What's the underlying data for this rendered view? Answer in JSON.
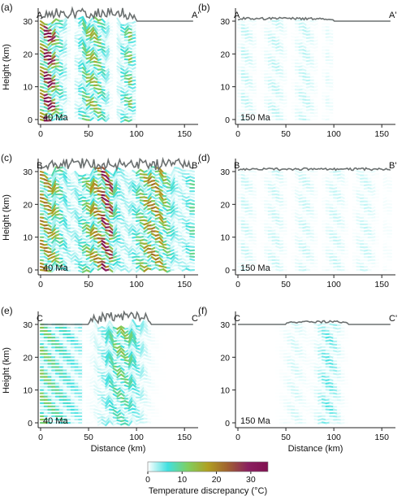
{
  "chart_data": [
    {
      "panel": "(a)",
      "type": "line",
      "profile_start": "A",
      "profile_end": "A'",
      "age": "40 Ma",
      "xlabel": "",
      "ylabel": "Height (km)",
      "xlim": [
        0,
        160
      ],
      "ylim": [
        0,
        32
      ],
      "xticks": [
        "0",
        "50",
        "100",
        "150"
      ],
      "yticks": [
        "0",
        "10",
        "20",
        "30"
      ],
      "series_count": 31,
      "layer_spacing_km": 1,
      "surface_height_km": 30,
      "topography_extent_km": [
        0,
        100
      ],
      "max_discrepancy_c": 30
    },
    {
      "panel": "(b)",
      "type": "line",
      "profile_start": "A",
      "profile_end": "A'",
      "age": "150 Ma",
      "xlabel": "",
      "ylabel": "",
      "xlim": [
        0,
        160
      ],
      "ylim": [
        0,
        32
      ],
      "xticks": [
        "0",
        "50",
        "100",
        "150"
      ],
      "yticks": [
        "0",
        "10",
        "20",
        "30"
      ],
      "series_count": 31,
      "layer_spacing_km": 1,
      "surface_height_km": 30,
      "topography_extent_km": [
        0,
        100
      ],
      "max_discrepancy_c": 8
    },
    {
      "panel": "(c)",
      "type": "line",
      "profile_start": "B",
      "profile_end": "B'",
      "age": "40 Ma",
      "xlabel": "",
      "ylabel": "Height (km)",
      "xlim": [
        0,
        160
      ],
      "ylim": [
        0,
        32
      ],
      "xticks": [
        "0",
        "50",
        "100",
        "150"
      ],
      "yticks": [
        "0",
        "10",
        "20",
        "30"
      ],
      "series_count": 31,
      "layer_spacing_km": 1,
      "surface_height_km": 30,
      "topography_extent_km": [
        0,
        160
      ],
      "max_discrepancy_c": 28
    },
    {
      "panel": "(d)",
      "type": "line",
      "profile_start": "B",
      "profile_end": "B'",
      "age": "150 Ma",
      "xlabel": "",
      "ylabel": "",
      "xlim": [
        0,
        160
      ],
      "ylim": [
        0,
        32
      ],
      "xticks": [
        "0",
        "50",
        "100",
        "150"
      ],
      "yticks": [
        "0",
        "10",
        "20",
        "30"
      ],
      "series_count": 31,
      "layer_spacing_km": 1,
      "surface_height_km": 30,
      "topography_extent_km": [
        0,
        160
      ],
      "max_discrepancy_c": 7
    },
    {
      "panel": "(e)",
      "type": "line",
      "profile_start": "C",
      "profile_end": "C'",
      "age": "40 Ma",
      "xlabel": "Distance (km)",
      "ylabel": "Height (km)",
      "xlim": [
        0,
        160
      ],
      "ylim": [
        0,
        32
      ],
      "xticks": [
        "0",
        "50",
        "100",
        "150"
      ],
      "yticks": [
        "0",
        "10",
        "20",
        "30"
      ],
      "series_count": 31,
      "layer_spacing_km": 1,
      "surface_height_km": 30,
      "topography_extent_km": [
        50,
        115
      ],
      "max_discrepancy_c": 25
    },
    {
      "panel": "(f)",
      "type": "line",
      "profile_start": "C",
      "profile_end": "C'",
      "age": "150 Ma",
      "xlabel": "Distance (km)",
      "ylabel": "",
      "xlim": [
        0,
        160
      ],
      "ylim": [
        0,
        32
      ],
      "xticks": [
        "0",
        "50",
        "100",
        "150"
      ],
      "yticks": [
        "0",
        "10",
        "20",
        "30"
      ],
      "series_count": 31,
      "layer_spacing_km": 1,
      "surface_height_km": 30,
      "topography_extent_km": [
        50,
        115
      ],
      "max_discrepancy_c": 10
    }
  ],
  "colorbar": {
    "label": "Temperature discrepancy (°C)",
    "ticks": [
      "0",
      "10",
      "20",
      "30"
    ],
    "range": [
      0,
      35
    ],
    "colors": [
      "#ffffff",
      "#40e0e0",
      "#7fcf60",
      "#b0a020",
      "#a06030",
      "#8a2060",
      "#801050"
    ]
  }
}
